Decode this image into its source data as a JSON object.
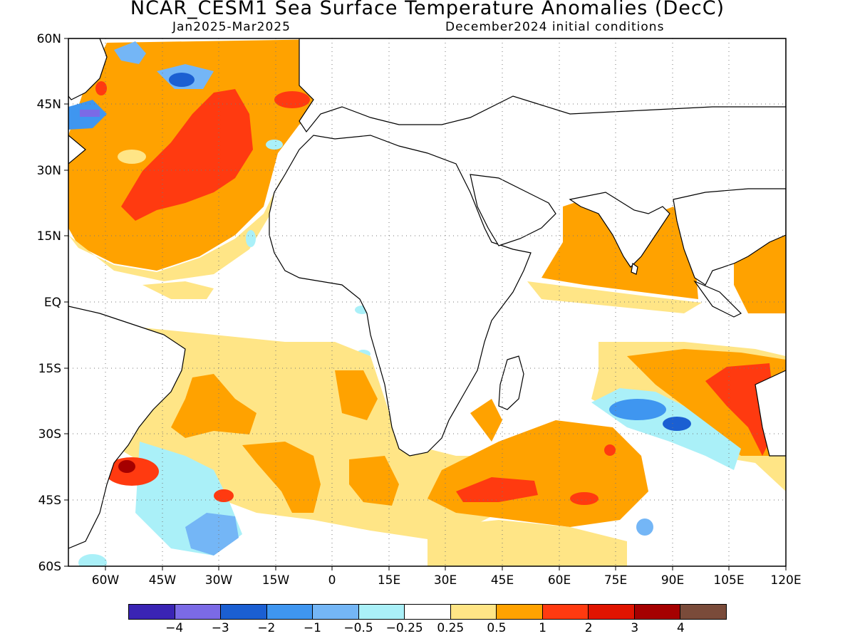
{
  "header": {
    "title": "NCAR_CESM1 Sea Surface Temperature Anomalies (DecC)",
    "period": "Jan2025-Mar2025",
    "init": "December2024 initial conditions"
  },
  "axes": {
    "lat_labels": [
      "60N",
      "45N",
      "30N",
      "15N",
      "EQ",
      "15S",
      "30S",
      "45S",
      "60S"
    ],
    "lon_labels": [
      "60W",
      "45W",
      "30W",
      "15W",
      "0",
      "15E",
      "30E",
      "45E",
      "60E",
      "75E",
      "90E",
      "105E",
      "120E"
    ]
  },
  "colorbar": {
    "colors": [
      "#3a24b4",
      "#7b6ae6",
      "#1b5fd2",
      "#3f96f0",
      "#74b6f6",
      "#aaf0f8",
      "#ffffff",
      "#ffe586",
      "#ffa200",
      "#ff3a10",
      "#e01400",
      "#a50000",
      "#7a4b3a"
    ],
    "labels": [
      "−4",
      "−3",
      "−2",
      "−1",
      "−0.5",
      "−0.25",
      "0.25",
      "0.5",
      "1",
      "2",
      "3",
      "4"
    ]
  },
  "map": {
    "region": "Atlantic and Indian Ocean, 70W-120E, 60S-60N",
    "land_fill": "#ffffff",
    "coast_color": "#000000",
    "grid": true
  }
}
